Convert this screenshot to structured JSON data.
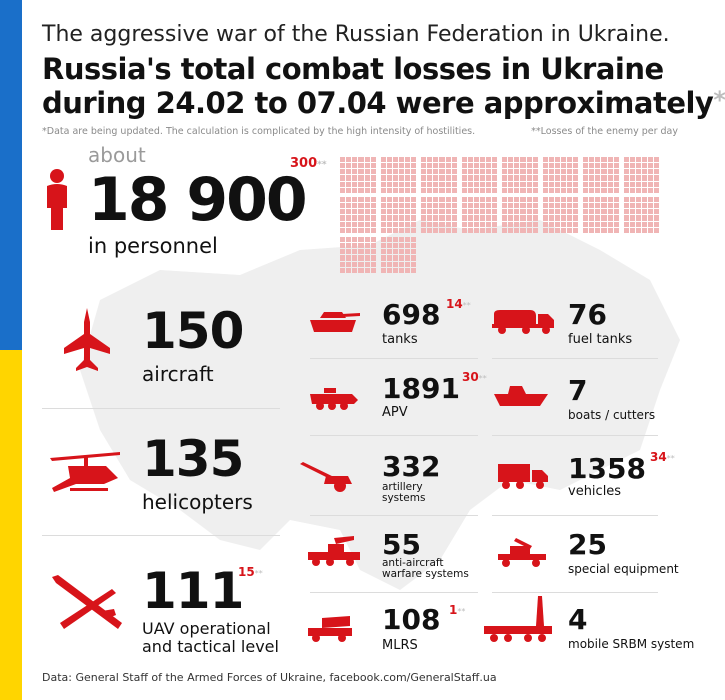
{
  "header": {
    "subtitle": "The aggressive war of the Russian Federation in Ukraine.",
    "title_line1": "Russia's total combat losses in Ukraine",
    "title_line2": "during 24.02 to 07.04 were approximately",
    "title_star": "*",
    "note_update": "*Data are being updated. The calculation is complicated by the high intensity of hostilities.",
    "note_per_day": "**Losses of the enemy per day"
  },
  "personnel": {
    "prefix": "about",
    "value": "18 900",
    "label": "in personnel",
    "per_day": "300",
    "per_day_stars": "**",
    "icon": "person-icon"
  },
  "left_items": [
    {
      "value": "150",
      "label": "aircraft",
      "icon": "aircraft-icon"
    },
    {
      "value": "135",
      "label": "helicopters",
      "icon": "helicopter-icon"
    },
    {
      "value": "111",
      "label_line1": "UAV operational",
      "label_line2": "and tactical level",
      "per_day": "15",
      "per_day_stars": "**",
      "icon": "uav-icon"
    }
  ],
  "mid_items": [
    {
      "value": "698",
      "label": "tanks",
      "per_day": "14",
      "per_day_stars": "**",
      "icon": "tank-icon"
    },
    {
      "value": "1891",
      "label": "APV",
      "per_day": "30",
      "per_day_stars": "**",
      "icon": "apv-icon"
    },
    {
      "value": "332",
      "label_line1": "artillery",
      "label_line2": "systems",
      "icon": "artillery-icon"
    },
    {
      "value": "55",
      "label_line1": "anti-aircraft",
      "label_line2": "warfare systems",
      "icon": "anti-aircraft-icon"
    },
    {
      "value": "108",
      "label": "MLRS",
      "per_day": "1",
      "per_day_stars": "**",
      "icon": "mlrs-icon"
    }
  ],
  "right_items": [
    {
      "value": "76",
      "label": "fuel tanks",
      "icon": "fuel-truck-icon"
    },
    {
      "value": "7",
      "label": "boats / cutters",
      "icon": "boat-icon"
    },
    {
      "value": "1358",
      "label": "vehicles",
      "per_day": "34",
      "per_day_stars": "**",
      "icon": "truck-icon"
    },
    {
      "value": "25",
      "label": "special equipment",
      "icon": "special-equipment-icon"
    },
    {
      "value": "4",
      "label": "mobile SRBM system",
      "icon": "srbm-icon"
    }
  ],
  "footer": {
    "source": "Data: General Staff of the Armed Forces of Ukraine, facebook.com/GeneralStaff.ua"
  },
  "colors": {
    "accent_red": "#d7141a",
    "grid_pink": "#f0b5b5",
    "flag_blue": "#1a6fc9",
    "flag_yellow": "#ffd500",
    "map_gray": "#efefef"
  }
}
